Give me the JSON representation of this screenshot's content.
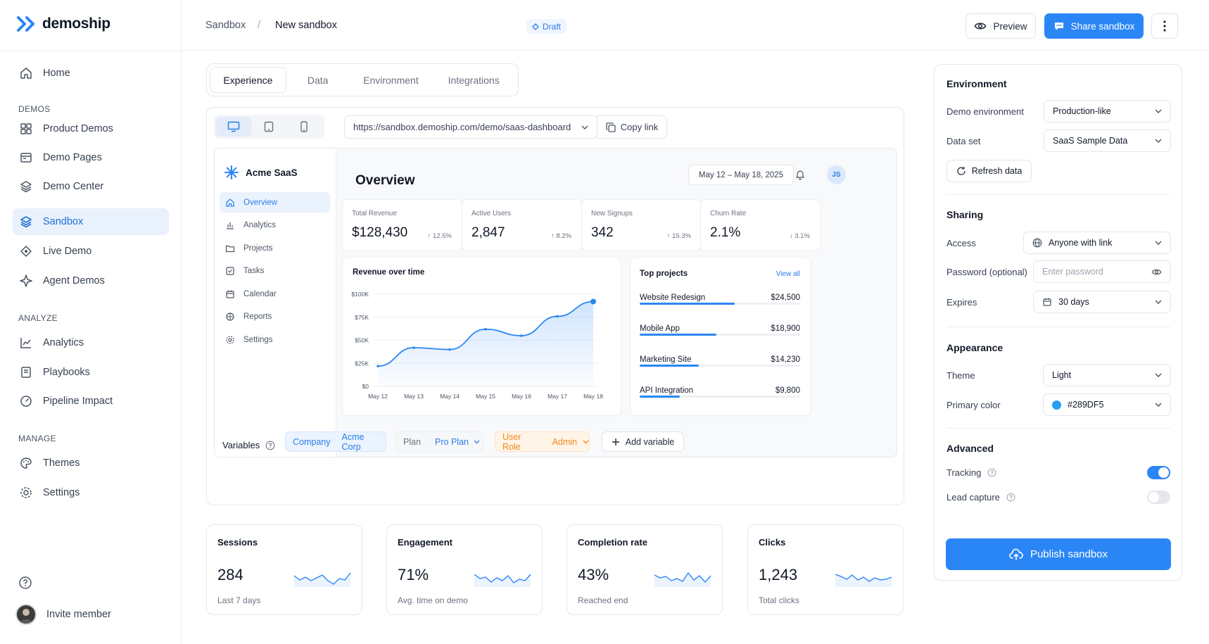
{
  "brand": {
    "name": "demoship",
    "color": "#2b86f5"
  },
  "sidebar": {
    "items": [
      {
        "label": "Home",
        "icon": "home-icon"
      },
      {
        "label": "Product Demos",
        "icon": "grid-icon"
      },
      {
        "label": "Demo Pages",
        "icon": "browser-icon"
      },
      {
        "label": "Demo Center",
        "icon": "layers-icon"
      },
      {
        "label": "Sandbox",
        "icon": "stack-icon",
        "active": true
      },
      {
        "label": "Live Demo",
        "icon": "live-icon"
      },
      {
        "label": "Agent Demos",
        "icon": "sparkle-icon"
      },
      {
        "label": "Analytics",
        "icon": "chart-icon"
      },
      {
        "label": "Playbooks",
        "icon": "book-icon"
      },
      {
        "label": "Pipeline Impact",
        "icon": "gauge-icon"
      },
      {
        "label": "Themes",
        "icon": "palette-icon"
      },
      {
        "label": "Settings",
        "icon": "gear-icon"
      }
    ],
    "sections": {
      "demos": "DEMOS",
      "analyze": "ANALYZE",
      "manage": "MANAGE"
    },
    "invite": "Invite member"
  },
  "header": {
    "crumb_root": "Sandbox",
    "crumb_sep": "/",
    "crumb_current": "New sandbox",
    "badge": "Draft",
    "preview": "Preview",
    "share": "Share sandbox"
  },
  "tabs": [
    "Experience",
    "Data",
    "Environment",
    "Integrations"
  ],
  "preview": {
    "url": "https://sandbox.demoship.com/demo/saas-dashboard",
    "copy": "Copy link",
    "app": {
      "name": "Acme SaaS",
      "nav": [
        "Overview",
        "Analytics",
        "Projects",
        "Tasks",
        "Calendar",
        "Reports",
        "Settings"
      ],
      "title": "Overview",
      "date_range": "May 12 – May 18, 2025",
      "user_initials": "JS",
      "kpis": [
        {
          "label": "Total Revenue",
          "value": "$128,430",
          "change": "↑ 12.5%"
        },
        {
          "label": "Active Users",
          "value": "2,847",
          "change": "↑ 8.2%"
        },
        {
          "label": "New Signups",
          "value": "342",
          "change": "↑ 15.3%"
        },
        {
          "label": "Churn Rate",
          "value": "2.1%",
          "change": "↓ 3.1%"
        }
      ],
      "revenue_title": "Revenue over time",
      "top_title": "Top projects",
      "view_all": "View all",
      "projects": [
        {
          "name": "Website Redesign",
          "value": "$24,500",
          "progress": 0.59
        },
        {
          "name": "Mobile App",
          "value": "$18,900",
          "progress": 0.48
        },
        {
          "name": "Marketing Site",
          "value": "$14,230",
          "progress": 0.37
        },
        {
          "name": "API Integration",
          "value": "$9,800",
          "progress": 0.25
        }
      ]
    },
    "variables_label": "Variables",
    "variables": [
      {
        "key": "Company",
        "value": "Acme Corp"
      },
      {
        "key": "Plan",
        "value": "Pro Plan"
      },
      {
        "key": "User Role",
        "value": "Admin"
      }
    ],
    "add_variable": "Add variable"
  },
  "chart_data": {
    "type": "line",
    "title": "Revenue over time",
    "categories": [
      "May 12",
      "May 13",
      "May 14",
      "May 15",
      "May 16",
      "May 17",
      "May 18"
    ],
    "values": [
      22000,
      42000,
      40000,
      62000,
      55000,
      76000,
      92000
    ],
    "ylim": [
      0,
      100000
    ],
    "yticks": [
      "$0",
      "$25K",
      "$50K",
      "$75K",
      "$100K"
    ],
    "grid": true,
    "color": "#2b86f5"
  },
  "stats": [
    {
      "title": "Sessions",
      "value": "284",
      "sub": "Last 7 days"
    },
    {
      "title": "Engagement",
      "value": "71%",
      "sub": "Avg. time on demo"
    },
    {
      "title": "Completion rate",
      "value": "43%",
      "sub": "Reached end"
    },
    {
      "title": "Clicks",
      "value": "1,243",
      "sub": "Total clicks"
    }
  ],
  "panel": {
    "environment": {
      "title": "Environment",
      "demo_env_label": "Demo environment",
      "demo_env_value": "Production-like",
      "dataset_label": "Data set",
      "dataset_value": "SaaS Sample Data",
      "refresh": "Refresh data"
    },
    "sharing": {
      "title": "Sharing",
      "access_label": "Access",
      "access_value": "Anyone with link",
      "password_label": "Password (optional)",
      "password_placeholder": "Enter password",
      "expires_label": "Expires",
      "expires_value": "30 days"
    },
    "appearance": {
      "title": "Appearance",
      "theme_label": "Theme",
      "theme_value": "Light",
      "color_label": "Primary color",
      "color_value": "#289DF5"
    },
    "advanced": {
      "title": "Advanced",
      "tracking_label": "Tracking",
      "tracking_on": true,
      "lead_label": "Lead capture",
      "lead_on": false
    },
    "publish": "Publish sandbox"
  }
}
